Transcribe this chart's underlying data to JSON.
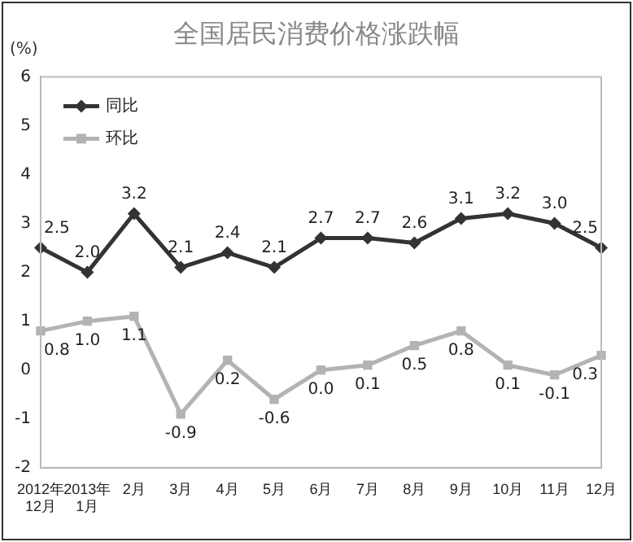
{
  "chart_data": {
    "type": "line",
    "title": "全国居民消费价格涨跌幅",
    "ylabel": "(%)",
    "categories": [
      "2012年\n12月",
      "2013年\n1月",
      "2月",
      "3月",
      "4月",
      "5月",
      "6月",
      "7月",
      "8月",
      "9月",
      "10月",
      "11月",
      "12月"
    ],
    "series": [
      {
        "name": "同比",
        "color": "#333333",
        "marker": "diamond",
        "values": [
          2.5,
          2.0,
          3.2,
          2.1,
          2.4,
          2.1,
          2.7,
          2.7,
          2.6,
          3.1,
          3.2,
          3.0,
          2.5
        ],
        "value_labels": [
          "2.5",
          "2.0",
          "3.2",
          "2.1",
          "2.4",
          "2.1",
          "2.7",
          "2.7",
          "2.6",
          "3.1",
          "3.2",
          "3.0",
          "2.5"
        ]
      },
      {
        "name": "环比",
        "color": "#b3b3b3",
        "marker": "square",
        "values": [
          0.8,
          1.0,
          1.1,
          -0.9,
          0.2,
          -0.6,
          0.0,
          0.1,
          0.5,
          0.8,
          0.1,
          -0.1,
          0.3
        ],
        "value_labels": [
          "0.8",
          "1.0",
          "1.1",
          "-0.9",
          "0.2",
          "-0.6",
          "0.0",
          "0.1",
          "0.5",
          "0.8",
          "0.1",
          "-0.1",
          "0.3"
        ]
      }
    ],
    "ylim": [
      -2,
      6
    ],
    "yticks": [
      -2,
      -1,
      0,
      1,
      2,
      3,
      4,
      5,
      6
    ],
    "grid": false,
    "legend": "top left",
    "line_style": "solid",
    "data_labels": true
  }
}
